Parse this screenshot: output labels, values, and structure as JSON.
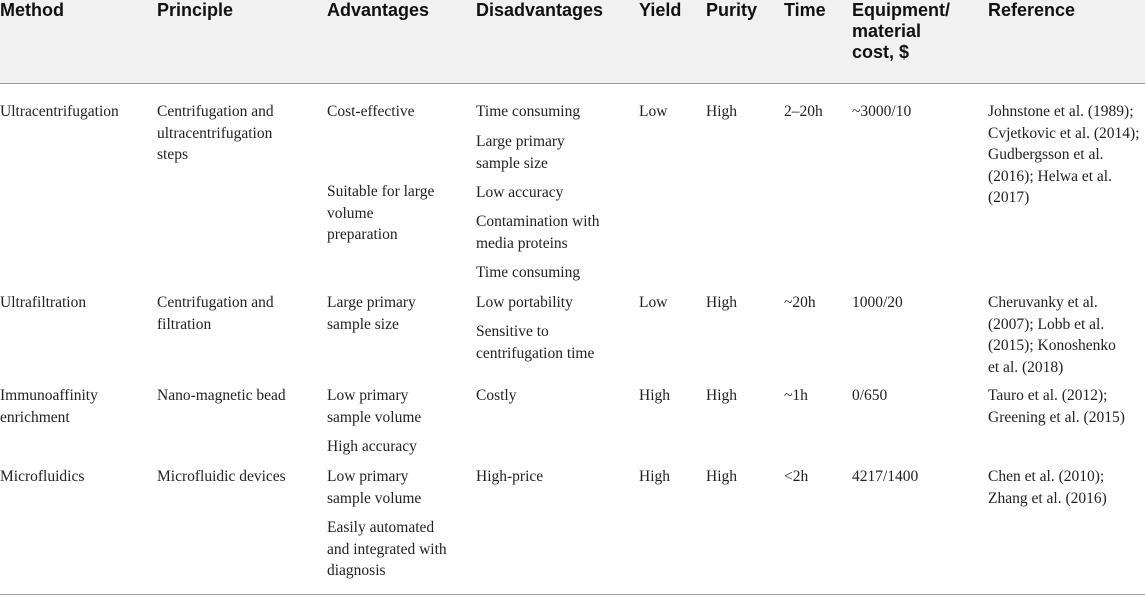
{
  "headers": {
    "method": "Method",
    "principle": "Principle",
    "advantages": "Advantages",
    "disadvantages": "Disadvantages",
    "yield": "Yield",
    "purity": "Purity",
    "time": "Time",
    "cost": "Equipment/\nmaterial\ncost, $",
    "reference": "Reference"
  },
  "rows": [
    {
      "method": "Ultracentrifugation",
      "principle": "Centrifugation and\nultracentrifugation\nsteps",
      "advantages": [
        "Cost-effective",
        "Suitable for large\nvolume\npreparation"
      ],
      "disadvantages": [
        "Time consuming",
        "Large primary\nsample size",
        "Low accuracy",
        "Contamination with\nmedia proteins"
      ],
      "yield": "Low",
      "purity": "High",
      "time": "2–20h",
      "cost": "~3000/10",
      "reference": "Johnstone et al. (1989);\nCvjetkovic et al. (2014);\nGudbergsson et al.\n(2016); Helwa et al.\n(2017)"
    },
    {
      "method": "Ultrafiltration",
      "principle": "Centrifugation and\nfiltration",
      "advantages": [
        "Large primary\nsample size"
      ],
      "disadvantages": [
        "Time consuming",
        "Low portability",
        "Sensitive to\ncentrifugation time"
      ],
      "yield": "Low",
      "purity": "High",
      "time": "~20h",
      "cost": "1000/20",
      "reference": "Cheruvanky et al.\n(2007); Lobb et al.\n(2015); Konoshenko\net al. (2018)"
    },
    {
      "method": "Immunoaffinity\nenrichment",
      "principle": "Nano-magnetic bead",
      "advantages": [
        "Low primary\nsample volume",
        "High accuracy"
      ],
      "disadvantages": [
        "Costly"
      ],
      "yield": "High",
      "purity": "High",
      "time": "~1h",
      "cost": "0/650",
      "reference": "Tauro et al. (2012);\nGreening et al. (2015)"
    },
    {
      "method": "Microfluidics",
      "principle": "Microfluidic devices",
      "advantages": [
        "Low primary\nsample volume",
        "Easily automated\nand integrated with\ndiagnosis"
      ],
      "disadvantages": [
        "High-price"
      ],
      "yield": "High",
      "purity": "High",
      "time": "<2h",
      "cost": "4217/1400",
      "reference": "Chen et al. (2010);\nZhang et al. (2016)"
    }
  ]
}
